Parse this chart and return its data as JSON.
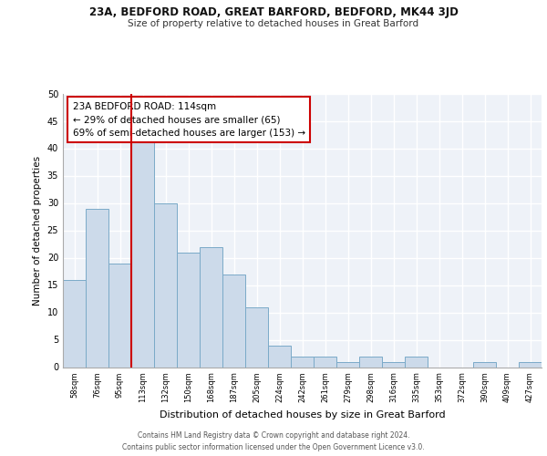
{
  "title1": "23A, BEDFORD ROAD, GREAT BARFORD, BEDFORD, MK44 3JD",
  "title2": "Size of property relative to detached houses in Great Barford",
  "xlabel": "Distribution of detached houses by size in Great Barford",
  "ylabel": "Number of detached properties",
  "bin_labels": [
    "58sqm",
    "76sqm",
    "95sqm",
    "113sqm",
    "132sqm",
    "150sqm",
    "168sqm",
    "187sqm",
    "205sqm",
    "224sqm",
    "242sqm",
    "261sqm",
    "279sqm",
    "298sqm",
    "316sqm",
    "335sqm",
    "353sqm",
    "372sqm",
    "390sqm",
    "409sqm",
    "427sqm"
  ],
  "bar_heights": [
    16,
    29,
    19,
    42,
    30,
    21,
    22,
    17,
    11,
    4,
    2,
    2,
    1,
    2,
    1,
    2,
    0,
    0,
    1,
    0,
    1
  ],
  "bar_color": "#ccdaea",
  "bar_edge_color": "#7aaac8",
  "background_color": "#eef2f8",
  "grid_color": "#ffffff",
  "annotation_line1": "23A BEDFORD ROAD: 114sqm",
  "annotation_line2": "← 29% of detached houses are smaller (65)",
  "annotation_line3": "69% of semi-detached houses are larger (153) →",
  "annotation_box_edge_color": "#cc0000",
  "marker_line_color": "#cc0000",
  "marker_bar_index": 3,
  "ylim": [
    0,
    50
  ],
  "yticks": [
    0,
    5,
    10,
    15,
    20,
    25,
    30,
    35,
    40,
    45,
    50
  ],
  "footer_line1": "Contains HM Land Registry data © Crown copyright and database right 2024.",
  "footer_line2": "Contains public sector information licensed under the Open Government Licence v3.0."
}
